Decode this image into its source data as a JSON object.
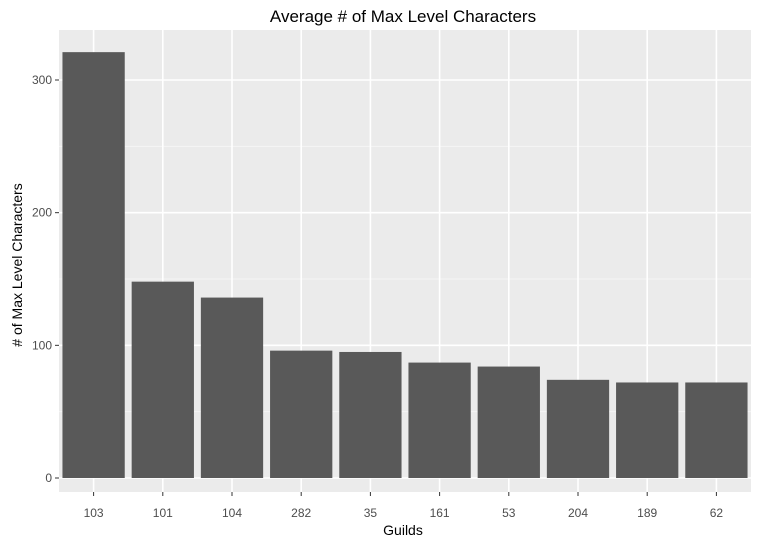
{
  "chart_data": {
    "type": "bar",
    "title": "Average # of Max Level Characters",
    "xlabel": "Guilds",
    "ylabel": "# of Max Level Characters",
    "categories": [
      "103",
      "101",
      "104",
      "282",
      "35",
      "161",
      "53",
      "204",
      "189",
      "62"
    ],
    "values": [
      321,
      148,
      136,
      96,
      95,
      87,
      84,
      74,
      72,
      72
    ],
    "ylim": [
      0,
      330
    ],
    "yticks": [
      0,
      100,
      200,
      300
    ],
    "ytick_labels": [
      "0",
      "100",
      "200",
      "300"
    ],
    "grid": true,
    "legend": "none"
  },
  "colors": {
    "panel": "#EBEBEB",
    "bar": "#595959",
    "grid_major": "#FFFFFF",
    "grid_minor": "#F5F5F5",
    "tick_text": "#4D4D4D"
  }
}
